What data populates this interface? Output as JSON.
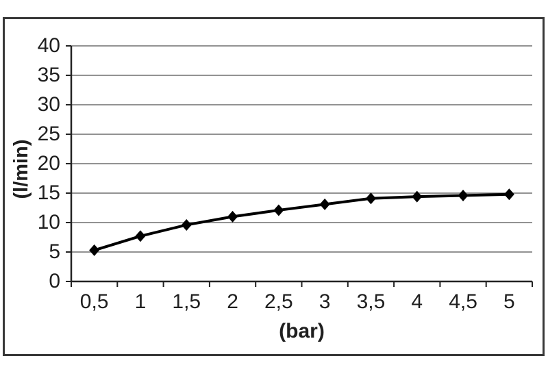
{
  "chart_data": {
    "type": "line",
    "title": "",
    "xlabel": "(bar)",
    "ylabel": "(l/min)",
    "x_values": [
      0.5,
      1,
      1.5,
      2,
      2.5,
      3,
      3.5,
      4,
      4.5,
      5
    ],
    "x_tick_labels": [
      "0,5",
      "1",
      "1,5",
      "2",
      "2,5",
      "3",
      "3,5",
      "4",
      "4,5",
      "5"
    ],
    "values": [
      5.3,
      7.7,
      9.6,
      11.0,
      12.1,
      13.1,
      14.1,
      14.4,
      14.6,
      14.8
    ],
    "ylim": [
      0,
      40
    ],
    "y_ticks": [
      0,
      5,
      10,
      15,
      20,
      25,
      30,
      35,
      40
    ],
    "y_tick_labels": [
      "0",
      "5",
      "10",
      "15",
      "20",
      "25",
      "30",
      "35",
      "40"
    ],
    "grid": "horizontal-only",
    "legend": "none",
    "marker": "diamond",
    "colors": {
      "line": "#000000",
      "marker": "#000000",
      "grid": "#6e6e6e",
      "axis": "#222222",
      "text": "#1f1f1f",
      "frame_border": "#383838",
      "background": "#ffffff"
    }
  }
}
